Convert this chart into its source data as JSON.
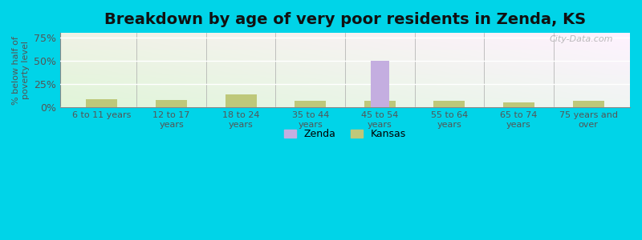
{
  "title": "Breakdown by age of very poor residents in Zenda, KS",
  "ylabel": "% below half of\npoverty level",
  "categories": [
    "6 to 11 years",
    "12 to 17\nyears",
    "18 to 24\nyears",
    "35 to 44\nyears",
    "45 to 54\nyears",
    "55 to 64\nyears",
    "65 to 74\nyears",
    "75 years and\nover"
  ],
  "zenda_values": [
    0,
    0,
    0,
    0,
    50,
    0,
    0,
    0
  ],
  "kansas_values": [
    8.5,
    7.5,
    14.0,
    7.0,
    7.0,
    7.0,
    5.5,
    7.0
  ],
  "zenda_color": "#c4aee0",
  "kansas_color": "#bec87a",
  "bar_width": 0.45,
  "ylim": [
    0,
    80
  ],
  "yticks": [
    0,
    25,
    50,
    75
  ],
  "ytick_labels": [
    "0%",
    "25%",
    "50%",
    "75%"
  ],
  "fig_bg_color": "#00d4e8",
  "plot_bg_color_tl": "#e8f5e0",
  "plot_bg_color_br": "#f8fff0",
  "title_fontsize": 14,
  "axis_fontsize": 9,
  "legend_labels": [
    "Zenda",
    "Kansas"
  ],
  "watermark": "City-Data.com"
}
